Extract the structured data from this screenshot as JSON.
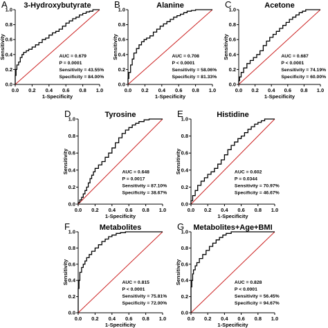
{
  "figure": {
    "background": "#ffffff",
    "curve_color": "#000000",
    "reference_color": "#cc2222"
  },
  "chart_data": [
    {
      "type": "line",
      "letter": "A",
      "title": "3-Hydroxybutyrate",
      "xlabel": "1-Specificity",
      "ylabel": "Sensitivity",
      "xlim": [
        0,
        1
      ],
      "ylim": [
        0,
        1
      ],
      "xticks": [
        "0.0",
        "0.2",
        "0.4",
        "0.6",
        "0.8",
        "1.0"
      ],
      "yticks": [
        "0.0",
        "0.2",
        "0.4",
        "0.6",
        "0.8",
        "1.0"
      ],
      "reference_line": [
        [
          0,
          0
        ],
        [
          1,
          1
        ]
      ],
      "stats": [
        "AUC = 0.679",
        "P = 0.0001",
        "Sensitivity = 43.55%",
        "Specificity = 84.00%"
      ],
      "series": [
        {
          "points": [
            [
              0,
              0
            ],
            [
              0,
              0.06
            ],
            [
              0.01,
              0.12
            ],
            [
              0.02,
              0.2
            ],
            [
              0.04,
              0.26
            ],
            [
              0.06,
              0.3
            ],
            [
              0.08,
              0.36
            ],
            [
              0.1,
              0.4
            ],
            [
              0.13,
              0.43
            ],
            [
              0.16,
              0.45
            ],
            [
              0.2,
              0.47
            ],
            [
              0.24,
              0.5
            ],
            [
              0.28,
              0.53
            ],
            [
              0.32,
              0.56
            ],
            [
              0.36,
              0.6
            ],
            [
              0.4,
              0.62
            ],
            [
              0.44,
              0.66
            ],
            [
              0.48,
              0.69
            ],
            [
              0.52,
              0.71
            ],
            [
              0.56,
              0.74
            ],
            [
              0.6,
              0.78
            ],
            [
              0.64,
              0.82
            ],
            [
              0.68,
              0.85
            ],
            [
              0.72,
              0.88
            ],
            [
              0.76,
              0.9
            ],
            [
              0.8,
              0.93
            ],
            [
              0.84,
              0.95
            ],
            [
              0.88,
              0.97
            ],
            [
              0.92,
              0.98
            ],
            [
              0.96,
              1
            ],
            [
              1,
              1
            ]
          ]
        }
      ]
    },
    {
      "type": "line",
      "letter": "B",
      "title": "Alanine",
      "xlabel": "1-Specificity",
      "ylabel": "Sensitivity",
      "xlim": [
        0,
        1
      ],
      "ylim": [
        0,
        1
      ],
      "xticks": [
        "0.0",
        "0.2",
        "0.4",
        "0.6",
        "0.8",
        "1.0"
      ],
      "yticks": [
        "0.0",
        "0.2",
        "0.4",
        "0.6",
        "0.8",
        "1.0"
      ],
      "reference_line": [
        [
          0,
          0
        ],
        [
          1,
          1
        ]
      ],
      "stats": [
        "AUC = 0.708",
        "P < 0.0001",
        "Sensitivity = 58.06%",
        "Specificity = 81.33%"
      ],
      "series": [
        {
          "points": [
            [
              0,
              0
            ],
            [
              0.01,
              0.08
            ],
            [
              0.03,
              0.16
            ],
            [
              0.05,
              0.26
            ],
            [
              0.07,
              0.34
            ],
            [
              0.1,
              0.42
            ],
            [
              0.13,
              0.48
            ],
            [
              0.16,
              0.53
            ],
            [
              0.19,
              0.57
            ],
            [
              0.22,
              0.6
            ],
            [
              0.26,
              0.62
            ],
            [
              0.3,
              0.65
            ],
            [
              0.34,
              0.7
            ],
            [
              0.38,
              0.74
            ],
            [
              0.42,
              0.78
            ],
            [
              0.46,
              0.81
            ],
            [
              0.5,
              0.84
            ],
            [
              0.54,
              0.87
            ],
            [
              0.58,
              0.9
            ],
            [
              0.62,
              0.92
            ],
            [
              0.66,
              0.94
            ],
            [
              0.7,
              0.96
            ],
            [
              0.75,
              0.98
            ],
            [
              0.8,
              0.99
            ],
            [
              0.86,
              1
            ],
            [
              1,
              1
            ]
          ]
        }
      ]
    },
    {
      "type": "line",
      "letter": "C",
      "title": "Acetone",
      "xlabel": "1-Specificity",
      "ylabel": "Sensitivity",
      "xlim": [
        0,
        1
      ],
      "ylim": [
        0,
        1
      ],
      "xticks": [
        "0.0",
        "0.2",
        "0.4",
        "0.6",
        "0.8",
        "1.0"
      ],
      "yticks": [
        "0.0",
        "0.2",
        "0.4",
        "0.6",
        "0.8",
        "1.0"
      ],
      "reference_line": [
        [
          0,
          0
        ],
        [
          1,
          1
        ]
      ],
      "stats": [
        "AUC = 0.687",
        "P < 0.0001",
        "Sensitivity = 74.19%",
        "Specificity = 60.00%"
      ],
      "series": [
        {
          "points": [
            [
              0,
              0
            ],
            [
              0.01,
              0.05
            ],
            [
              0.03,
              0.1
            ],
            [
              0.06,
              0.16
            ],
            [
              0.1,
              0.22
            ],
            [
              0.14,
              0.28
            ],
            [
              0.18,
              0.32
            ],
            [
              0.22,
              0.36
            ],
            [
              0.26,
              0.4
            ],
            [
              0.3,
              0.45
            ],
            [
              0.34,
              0.52
            ],
            [
              0.38,
              0.58
            ],
            [
              0.42,
              0.63
            ],
            [
              0.46,
              0.67
            ],
            [
              0.5,
              0.71
            ],
            [
              0.54,
              0.75
            ],
            [
              0.58,
              0.79
            ],
            [
              0.62,
              0.83
            ],
            [
              0.66,
              0.87
            ],
            [
              0.7,
              0.9
            ],
            [
              0.74,
              0.93
            ],
            [
              0.78,
              0.96
            ],
            [
              0.82,
              0.98
            ],
            [
              0.88,
              1
            ],
            [
              1,
              1
            ]
          ]
        }
      ]
    },
    {
      "type": "line",
      "letter": "D",
      "title": "Tyrosine",
      "xlabel": "1-Specificity",
      "ylabel": "Sensitivity",
      "xlim": [
        0,
        1
      ],
      "ylim": [
        0,
        1
      ],
      "xticks": [
        "0.0",
        "0.2",
        "0.4",
        "0.6",
        "0.8",
        "1.0"
      ],
      "yticks": [
        "0.0",
        "0.2",
        "0.4",
        "0.6",
        "0.8",
        "1.0"
      ],
      "reference_line": [
        [
          0,
          0
        ],
        [
          1,
          1
        ]
      ],
      "stats": [
        "AUC = 0.648",
        "P = 0.0017",
        "Sensitivity = 87.10%",
        "Specificity = 38.67%"
      ],
      "series": [
        {
          "points": [
            [
              0,
              0
            ],
            [
              0.02,
              0.02
            ],
            [
              0.04,
              0.05
            ],
            [
              0.06,
              0.08
            ],
            [
              0.08,
              0.12
            ],
            [
              0.1,
              0.16
            ],
            [
              0.12,
              0.2
            ],
            [
              0.14,
              0.25
            ],
            [
              0.16,
              0.3
            ],
            [
              0.18,
              0.34
            ],
            [
              0.2,
              0.38
            ],
            [
              0.24,
              0.42
            ],
            [
              0.28,
              0.46
            ],
            [
              0.32,
              0.5
            ],
            [
              0.36,
              0.55
            ],
            [
              0.4,
              0.6
            ],
            [
              0.44,
              0.66
            ],
            [
              0.48,
              0.72
            ],
            [
              0.52,
              0.78
            ],
            [
              0.56,
              0.83
            ],
            [
              0.6,
              0.87
            ],
            [
              0.64,
              0.9
            ],
            [
              0.68,
              0.93
            ],
            [
              0.72,
              0.95
            ],
            [
              0.78,
              0.97
            ],
            [
              0.84,
              0.99
            ],
            [
              0.9,
              1
            ],
            [
              1,
              1
            ]
          ]
        }
      ]
    },
    {
      "type": "line",
      "letter": "E",
      "title": "Histidine",
      "xlabel": "1-Specificity",
      "ylabel": "Sensitivity",
      "xlim": [
        0,
        1
      ],
      "ylim": [
        0,
        1
      ],
      "xticks": [
        "0.0",
        "0.2",
        "0.4",
        "0.6",
        "0.8",
        "1.0"
      ],
      "yticks": [
        "0.0",
        "0.2",
        "0.4",
        "0.6",
        "0.8",
        "1.0"
      ],
      "reference_line": [
        [
          0,
          0
        ],
        [
          1,
          1
        ]
      ],
      "stats": [
        "AUC = 0.602",
        "P = 0.0344",
        "Sensitivity = 70.97%",
        "Specificity = 46.67%"
      ],
      "series": [
        {
          "points": [
            [
              0,
              0
            ],
            [
              0.02,
              0.04
            ],
            [
              0.05,
              0.1
            ],
            [
              0.08,
              0.16
            ],
            [
              0.12,
              0.22
            ],
            [
              0.16,
              0.27
            ],
            [
              0.2,
              0.31
            ],
            [
              0.24,
              0.35
            ],
            [
              0.28,
              0.38
            ],
            [
              0.32,
              0.42
            ],
            [
              0.36,
              0.47
            ],
            [
              0.4,
              0.52
            ],
            [
              0.44,
              0.58
            ],
            [
              0.48,
              0.64
            ],
            [
              0.52,
              0.69
            ],
            [
              0.56,
              0.73
            ],
            [
              0.6,
              0.77
            ],
            [
              0.64,
              0.8
            ],
            [
              0.68,
              0.84
            ],
            [
              0.72,
              0.88
            ],
            [
              0.76,
              0.91
            ],
            [
              0.8,
              0.94
            ],
            [
              0.84,
              0.96
            ],
            [
              0.88,
              0.98
            ],
            [
              0.92,
              1
            ],
            [
              1,
              1
            ]
          ]
        }
      ]
    },
    {
      "type": "line",
      "letter": "F",
      "title": "Metabolites",
      "xlabel": "1-Specificity",
      "ylabel": "Sensitivity",
      "xlim": [
        0,
        1
      ],
      "ylim": [
        0,
        1
      ],
      "xticks": [
        "0.0",
        "0.2",
        "0.4",
        "0.6",
        "0.8",
        "1.0"
      ],
      "yticks": [
        "0.0",
        "0.2",
        "0.4",
        "0.6",
        "0.8",
        "1.0"
      ],
      "reference_line": [
        [
          0,
          0
        ],
        [
          1,
          1
        ]
      ],
      "stats": [
        "AUC = 0.815",
        "P < 0.0001",
        "Sensitivity = 75.81%",
        "Specificity = 72.00%"
      ],
      "series": [
        {
          "points": [
            [
              0,
              0
            ],
            [
              0,
              0.2
            ],
            [
              0.01,
              0.3
            ],
            [
              0.02,
              0.4
            ],
            [
              0.04,
              0.5
            ],
            [
              0.06,
              0.56
            ],
            [
              0.08,
              0.6
            ],
            [
              0.1,
              0.64
            ],
            [
              0.13,
              0.68
            ],
            [
              0.16,
              0.72
            ],
            [
              0.2,
              0.76
            ],
            [
              0.24,
              0.8
            ],
            [
              0.28,
              0.84
            ],
            [
              0.32,
              0.88
            ],
            [
              0.36,
              0.91
            ],
            [
              0.4,
              0.94
            ],
            [
              0.45,
              0.96
            ],
            [
              0.5,
              0.98
            ],
            [
              0.56,
              0.99
            ],
            [
              0.62,
              1
            ],
            [
              1,
              1
            ]
          ]
        }
      ]
    },
    {
      "type": "line",
      "letter": "G",
      "title": "Metabolites+Age+BMI",
      "xlabel": "1-Specificity",
      "ylabel": "Sensitivity",
      "xlim": [
        0,
        1
      ],
      "ylim": [
        0,
        1
      ],
      "xticks": [
        "0.0",
        "0.2",
        "0.4",
        "0.6",
        "0.8",
        "1.0"
      ],
      "yticks": [
        "0.0",
        "0.2",
        "0.4",
        "0.6",
        "0.8",
        "1.0"
      ],
      "reference_line": [
        [
          0,
          0
        ],
        [
          1,
          1
        ]
      ],
      "stats": [
        "AUC = 0.828",
        "P < 0.0001",
        "Sensitivity = 56.45%",
        "Specificity = 94.67%"
      ],
      "series": [
        {
          "points": [
            [
              0,
              0
            ],
            [
              0,
              0.22
            ],
            [
              0.01,
              0.32
            ],
            [
              0.02,
              0.4
            ],
            [
              0.03,
              0.48
            ],
            [
              0.05,
              0.53
            ],
            [
              0.07,
              0.58
            ],
            [
              0.1,
              0.62
            ],
            [
              0.14,
              0.67
            ],
            [
              0.18,
              0.72
            ],
            [
              0.22,
              0.77
            ],
            [
              0.26,
              0.82
            ],
            [
              0.3,
              0.86
            ],
            [
              0.34,
              0.9
            ],
            [
              0.38,
              0.93
            ],
            [
              0.42,
              0.96
            ],
            [
              0.48,
              0.98
            ],
            [
              0.55,
              1
            ],
            [
              1,
              1
            ]
          ]
        }
      ]
    }
  ]
}
